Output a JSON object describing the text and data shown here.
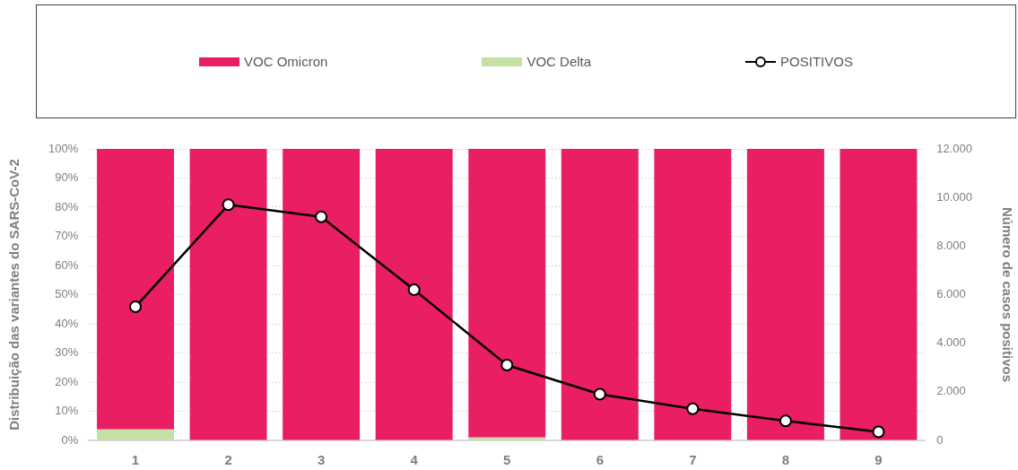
{
  "chart_data": {
    "type": "bar",
    "stacked": true,
    "ylabel": "Distribuição das variantes do SARS-CoV-2",
    "y2label": "Número de casos positivos",
    "categories": [
      "1",
      "2",
      "3",
      "4",
      "5",
      "6",
      "7",
      "8",
      "9"
    ],
    "series": [
      {
        "name": "VOC Delta",
        "color": "#c5e0a5",
        "values": [
          3.8,
          0,
          0,
          0,
          1.0,
          0,
          0,
          0,
          0
        ]
      },
      {
        "name": "VOC Omicron",
        "color": "#e91e63",
        "values": [
          96.2,
          100,
          100,
          100,
          99.0,
          100,
          100,
          100,
          100
        ]
      },
      {
        "name": "POSITIVOS",
        "type": "line",
        "axis": "y2",
        "color": "#000000",
        "values": [
          5500,
          9700,
          9200,
          6200,
          3100,
          1900,
          1300,
          800,
          350
        ]
      }
    ],
    "ylim": [
      0,
      100
    ],
    "yticks": [
      {
        "value": 0,
        "label": "0%"
      },
      {
        "value": 10,
        "label": "10%"
      },
      {
        "value": 20,
        "label": "20%"
      },
      {
        "value": 30,
        "label": "30%"
      },
      {
        "value": 40,
        "label": "40%"
      },
      {
        "value": 50,
        "label": "50%"
      },
      {
        "value": 60,
        "label": "60%"
      },
      {
        "value": 70,
        "label": "70%"
      },
      {
        "value": 80,
        "label": "80%"
      },
      {
        "value": 90,
        "label": "90%"
      },
      {
        "value": 100,
        "label": "100%"
      }
    ],
    "y2lim": [
      0,
      12000
    ],
    "y2ticks": [
      0,
      {
        "value": 2000,
        "label": "2.000"
      },
      {
        "value": 4000,
        "label": "4.000"
      },
      {
        "value": 6000,
        "label": "6.000"
      },
      {
        "value": 8000,
        "label": "8.000"
      },
      {
        "value": 10000,
        "label": "10.000"
      },
      {
        "value": 12000,
        "label": "12.000"
      }
    ],
    "grid": "y",
    "legend": "top",
    "marker": "circle"
  }
}
